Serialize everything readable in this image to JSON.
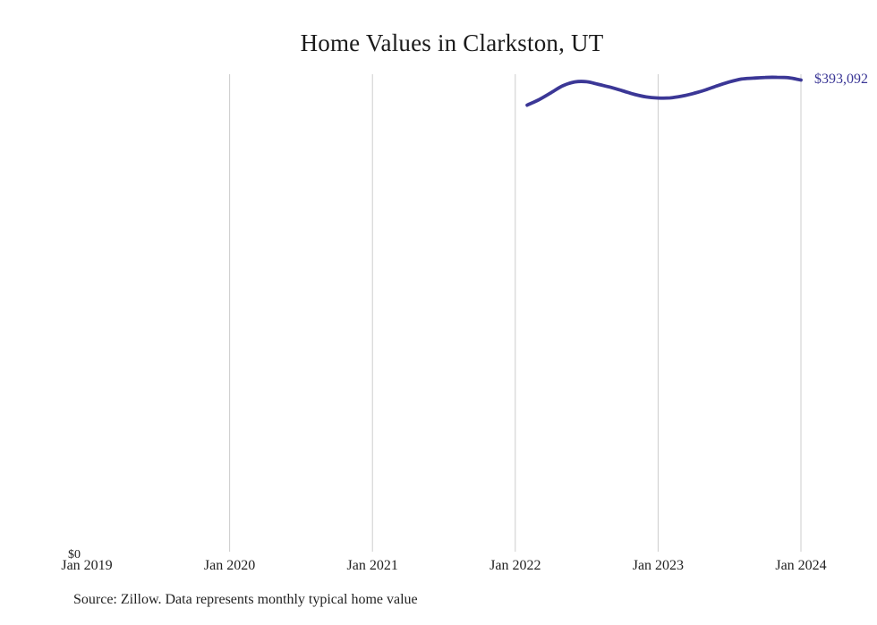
{
  "title": "Home Values in Clarkston, UT",
  "source_note": "Source: Zillow. Data represents monthly typical home value",
  "colors": {
    "line": "#3b3796",
    "grid": "#cccccc",
    "text": "#222222",
    "value_label": "#3b3796",
    "background": "#ffffff"
  },
  "chart_data": {
    "type": "line",
    "title": "Home Values in Clarkston, UT",
    "xlabel": "",
    "ylabel": "",
    "grid": "vertical-year-gridlines-only",
    "legend": "none",
    "end_annotation": "$393,092",
    "ylim": [
      0,
      398000
    ],
    "x_axis": {
      "range_start": "2019-01",
      "range_end": "2024-01",
      "zero_label": "$0",
      "ticks": [
        {
          "label": "Jan 2019",
          "month": "2019-01"
        },
        {
          "label": "Jan 2020",
          "month": "2020-01"
        },
        {
          "label": "Jan 2021",
          "month": "2021-01"
        },
        {
          "label": "Jan 2022",
          "month": "2022-01"
        },
        {
          "label": "Jan 2023",
          "month": "2023-01"
        },
        {
          "label": "Jan 2024",
          "month": "2024-01"
        }
      ],
      "gridline_months": [
        "2020-01",
        "2021-01",
        "2022-01",
        "2023-01",
        "2024-01"
      ]
    },
    "series": [
      {
        "name": "Monthly typical home value",
        "x": [
          "2022-02",
          "2022-03",
          "2022-04",
          "2022-05",
          "2022-06",
          "2022-07",
          "2022-08",
          "2022-09",
          "2022-10",
          "2022-11",
          "2022-12",
          "2023-01",
          "2023-02",
          "2023-03",
          "2023-04",
          "2023-05",
          "2023-06",
          "2023-07",
          "2023-08",
          "2023-09",
          "2023-10",
          "2023-11",
          "2023-12",
          "2024-01"
        ],
        "values": [
          372000,
          376600,
          382400,
          388300,
          391500,
          391700,
          389400,
          387000,
          384100,
          381100,
          378900,
          378000,
          378100,
          379600,
          381900,
          384800,
          388400,
          391500,
          393900,
          394700,
          395300,
          395400,
          395000,
          393092
        ]
      }
    ]
  }
}
